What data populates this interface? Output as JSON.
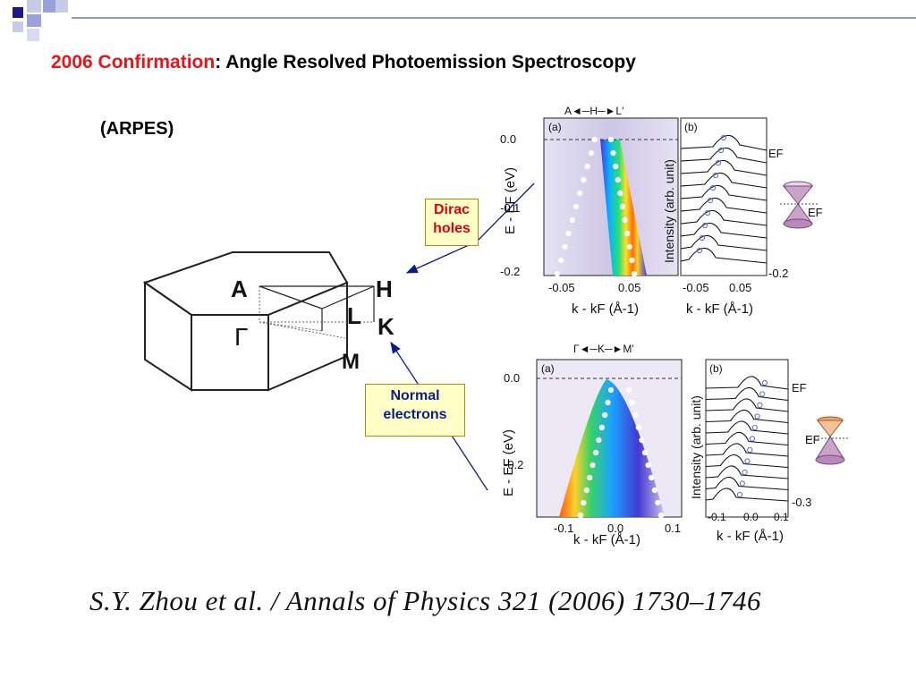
{
  "title": {
    "highlight": "2006 Confirmation",
    "rest": ": Angle Resolved Photoemission Spectroscopy"
  },
  "subtitle": "(ARPES)",
  "callouts": {
    "dirac_line1": "Dirac",
    "dirac_line2": "holes",
    "normal_line1": "Normal",
    "normal_line2": "electrons"
  },
  "brillouin_zone": {
    "labels": {
      "A": "A",
      "H": "H",
      "L": "L",
      "K": "K",
      "M": "M",
      "Gamma": "Γ"
    }
  },
  "top_panel": {
    "path_label": "A◄─H─►L'",
    "panel_a": "(a)",
    "panel_b": "(b)",
    "ylabel": "E - EF (eV)",
    "yticks": [
      "0.0",
      "-0.1",
      "-0.2"
    ],
    "xticks": [
      "-0.05",
      "0.05"
    ],
    "xlabel": "k - kF (Å-1)",
    "edc_ylabel": "Intensity (arb. unit)",
    "edc_xticks": [
      "-0.05",
      "0.05"
    ],
    "edc_xlabel": "k - kF (Å-1)",
    "ef_label": "EF",
    "bottom_value": "-0.2",
    "cone_label": "EF"
  },
  "bottom_panel": {
    "path_label": "Γ◄─K─►M'",
    "panel_a": "(a)",
    "panel_b": "(b)",
    "ylabel": "E - EF (eV)",
    "yticks": [
      "0.0",
      "-0.2"
    ],
    "xticks": [
      "-0.1",
      "0.0",
      "0.1"
    ],
    "xlabel": "k - kF (Å-1)",
    "edc_ylabel": "Intensity (arb. unit)",
    "edc_xticks": [
      "-0.1",
      "0.0",
      "0.1"
    ],
    "edc_xlabel": "k - kF (Å-1)",
    "ef_label": "EF",
    "bottom_value": "-0.3",
    "cone_label": "EF"
  },
  "citation": "S.Y. Zhou et al. / Annals of Physics 321 (2006) 1730–1746",
  "colors": {
    "title_highlight": "#e8141b",
    "callout_fill": "#ffffc8",
    "arrow": "#0b1d8a",
    "dots_hollow": "#5a6bd8",
    "cone": "#c9a3c9"
  }
}
